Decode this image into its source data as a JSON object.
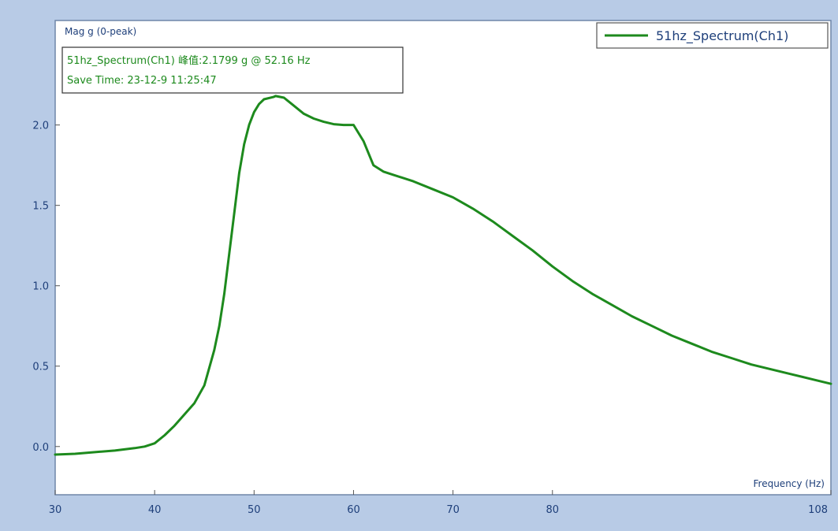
{
  "chart_data": {
    "type": "line",
    "title": "",
    "ylabel": "Mag g (0-peak)",
    "xlabel": "Frequency (Hz)",
    "xlim": [
      30,
      108
    ],
    "ylim": [
      -0.3,
      2.65
    ],
    "x_ticks": [
      {
        "value": 30,
        "label": "30"
      },
      {
        "value": 40,
        "label": "40"
      },
      {
        "value": 50,
        "label": "50"
      },
      {
        "value": 60,
        "label": "60"
      },
      {
        "value": 70,
        "label": "70"
      },
      {
        "value": 80,
        "label": "80"
      },
      {
        "value": 108,
        "label": "108"
      }
    ],
    "y_ticks": [
      {
        "value": 0.0,
        "label": "0.0"
      },
      {
        "value": 0.5,
        "label": "0.5"
      },
      {
        "value": 1.0,
        "label": "1.0"
      },
      {
        "value": 1.5,
        "label": "1.5"
      },
      {
        "value": 2.0,
        "label": "2.0"
      }
    ],
    "grid": false,
    "legend": {
      "position": "top-right",
      "entries": [
        "51hz_Spectrum(Ch1)"
      ]
    },
    "annotation": {
      "line1": "51hz_Spectrum(Ch1) 峰值:2.1799 g @ 52.16 Hz",
      "line2": "Save Time: 23-12-9 11:25:47"
    },
    "series": [
      {
        "name": "51hz_Spectrum(Ch1)",
        "color": "#1d8a1d",
        "x": [
          30,
          32,
          34,
          36,
          38,
          39,
          40,
          41,
          42,
          43,
          44,
          45,
          46,
          46.5,
          47,
          47.5,
          48,
          48.5,
          49,
          49.5,
          50,
          50.5,
          51,
          52,
          52.16,
          53,
          54,
          55,
          56,
          57,
          58,
          59,
          60,
          61,
          62,
          63,
          64,
          66,
          68,
          70,
          72,
          74,
          76,
          78,
          80,
          82,
          84,
          86,
          88,
          90,
          92,
          94,
          96,
          98,
          100,
          102,
          104,
          106,
          108
        ],
        "y": [
          -0.05,
          -0.045,
          -0.035,
          -0.025,
          -0.01,
          0.0,
          0.02,
          0.07,
          0.13,
          0.2,
          0.27,
          0.38,
          0.6,
          0.75,
          0.95,
          1.2,
          1.45,
          1.7,
          1.88,
          2.0,
          2.08,
          2.13,
          2.16,
          2.175,
          2.18,
          2.17,
          2.12,
          2.07,
          2.04,
          2.02,
          2.005,
          2.0,
          2.0,
          1.9,
          1.75,
          1.71,
          1.69,
          1.65,
          1.6,
          1.55,
          1.48,
          1.4,
          1.31,
          1.22,
          1.12,
          1.03,
          0.95,
          0.88,
          0.81,
          0.75,
          0.69,
          0.64,
          0.59,
          0.55,
          0.51,
          0.48,
          0.45,
          0.42,
          0.39
        ]
      }
    ]
  }
}
